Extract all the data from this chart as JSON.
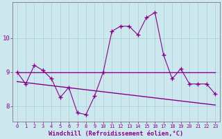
{
  "xlabel": "Windchill (Refroidissement éolien,°C)",
  "background_color": "#cce8ee",
  "grid_color": "#aad4da",
  "line_color": "#880088",
  "hours": [
    0,
    1,
    2,
    3,
    4,
    5,
    6,
    7,
    8,
    9,
    10,
    11,
    12,
    13,
    14,
    15,
    16,
    17,
    18,
    19,
    20,
    21,
    22,
    23
  ],
  "line_data": [
    9.0,
    8.65,
    9.2,
    9.05,
    8.8,
    8.25,
    8.55,
    7.8,
    7.75,
    8.3,
    9.0,
    10.2,
    10.35,
    10.35,
    10.1,
    10.6,
    10.75,
    9.5,
    8.8,
    9.1,
    8.65,
    8.65,
    8.65,
    8.35
  ],
  "line_upper": [
    9.0,
    9.0,
    9.0,
    9.0,
    9.0,
    9.0,
    9.0,
    9.0,
    9.0,
    9.0,
    9.0,
    9.0,
    9.0,
    9.0,
    9.0,
    9.0,
    9.0,
    9.0,
    9.0,
    9.0,
    9.0,
    9.0,
    9.0,
    9.0
  ],
  "line_lower": [
    8.72,
    8.69,
    8.66,
    8.63,
    8.6,
    8.57,
    8.54,
    8.51,
    8.48,
    8.45,
    8.42,
    8.39,
    8.36,
    8.33,
    8.3,
    8.27,
    8.24,
    8.21,
    8.18,
    8.15,
    8.12,
    8.09,
    8.06,
    8.03
  ],
  "ylim": [
    7.55,
    11.05
  ],
  "yticks": [
    8,
    9,
    10
  ],
  "xticks": [
    0,
    1,
    2,
    3,
    4,
    5,
    6,
    7,
    8,
    9,
    10,
    11,
    12,
    13,
    14,
    15,
    16,
    17,
    18,
    19,
    20,
    21,
    22,
    23
  ]
}
